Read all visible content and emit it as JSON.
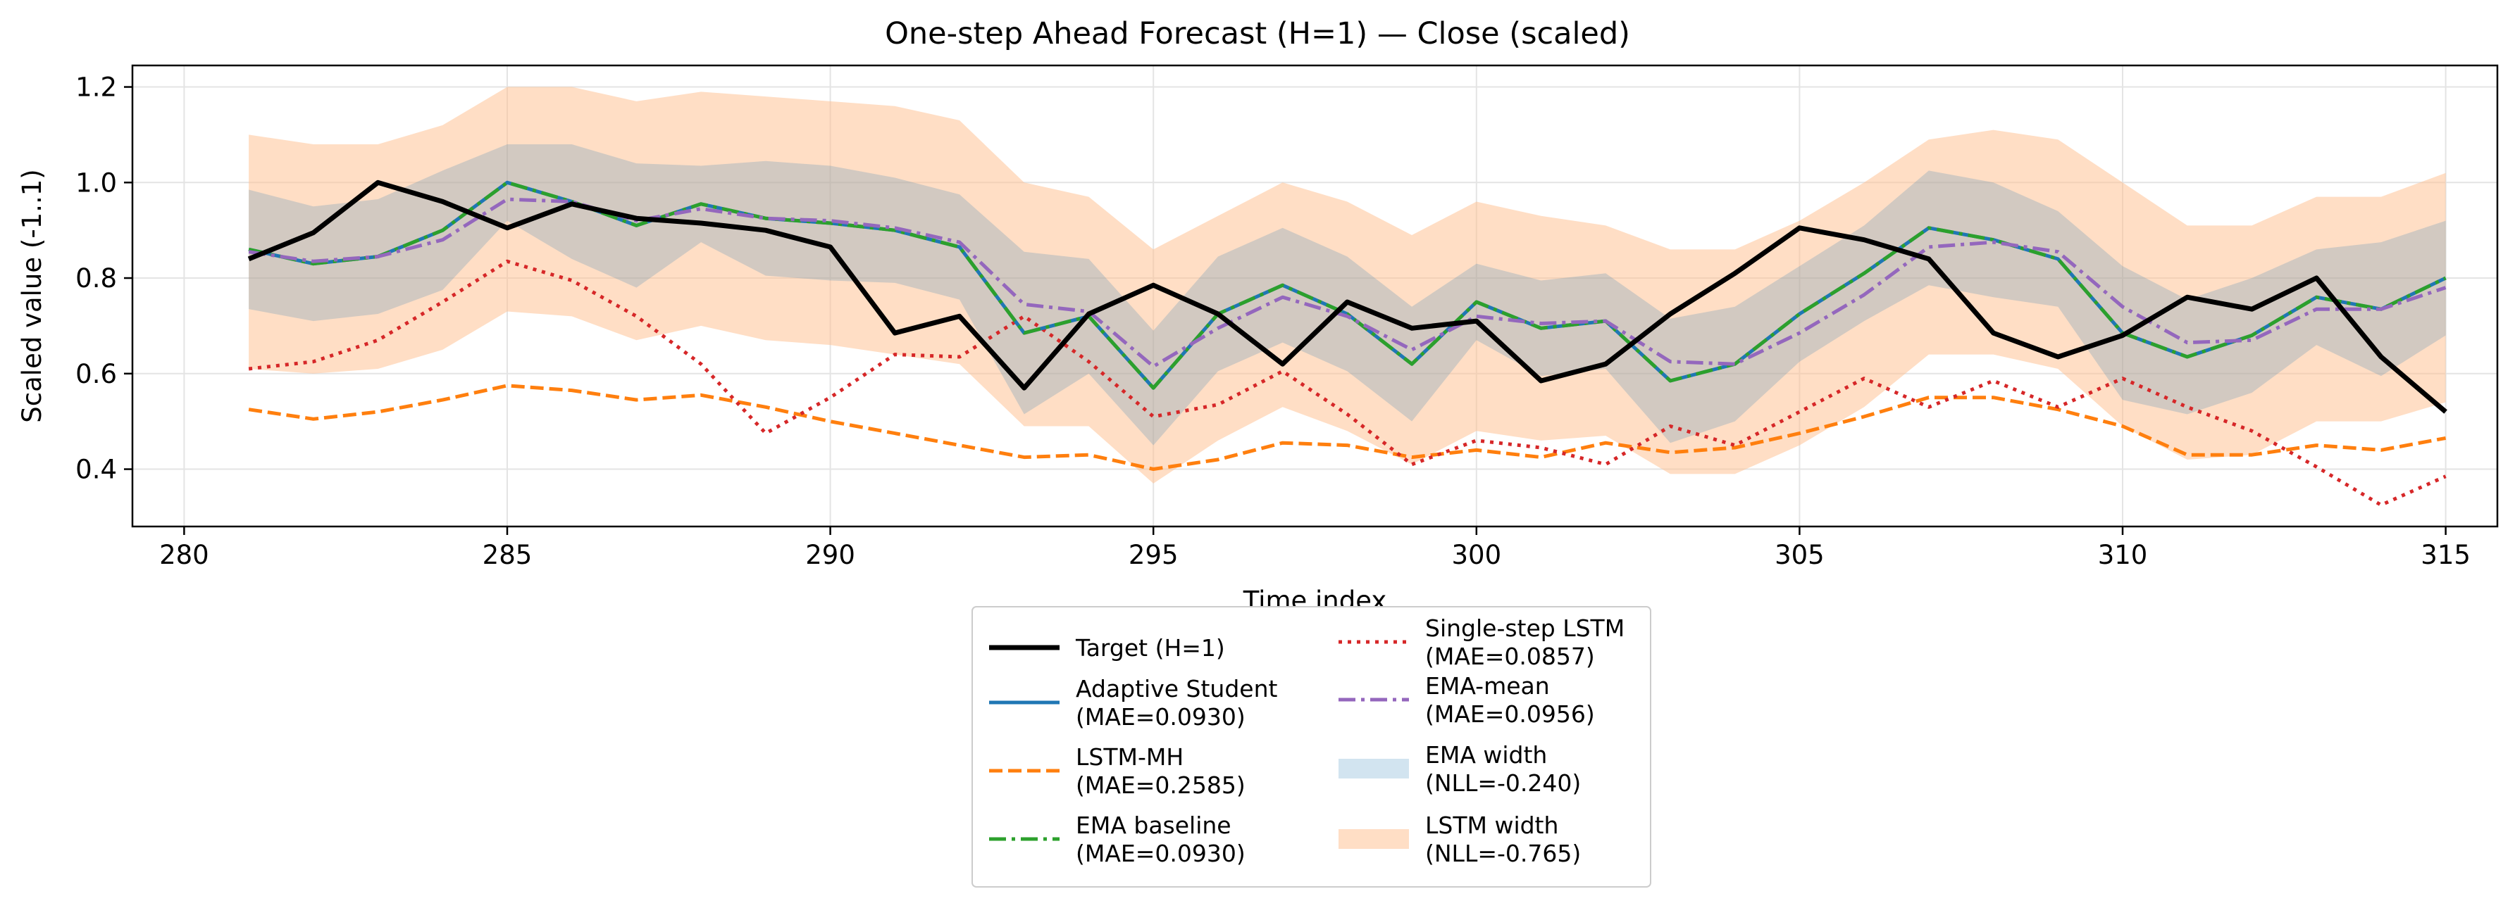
{
  "chart_data": {
    "type": "line",
    "title": "One-step Ahead Forecast (H=1) — Close (scaled)",
    "xlabel": "Time index",
    "ylabel": "Scaled value (-1..1)",
    "xlim": [
      279.2,
      315.8
    ],
    "ylim": [
      0.28,
      1.245
    ],
    "xticks": [
      "280",
      "285",
      "290",
      "295",
      "300",
      "305",
      "310",
      "315"
    ],
    "yticks": [
      "0.4",
      "0.6",
      "0.8",
      "1.0",
      "1.2"
    ],
    "grid": true,
    "legend_position": "below",
    "x": [
      281,
      282,
      283,
      284,
      285,
      286,
      287,
      288,
      289,
      290,
      291,
      292,
      293,
      294,
      295,
      296,
      297,
      298,
      299,
      300,
      301,
      302,
      303,
      304,
      305,
      306,
      307,
      308,
      309,
      310,
      311,
      312,
      313,
      314,
      315
    ],
    "series": [
      {
        "name": "Target (H=1)",
        "color": "#000000",
        "dash": "solid",
        "width": 7,
        "values": [
          0.84,
          0.895,
          1.0,
          0.96,
          0.905,
          0.955,
          0.925,
          0.915,
          0.9,
          0.865,
          0.685,
          0.72,
          0.57,
          0.725,
          0.785,
          0.725,
          0.62,
          0.75,
          0.695,
          0.71,
          0.585,
          0.62,
          0.725,
          0.81,
          0.905,
          0.88,
          0.84,
          0.685,
          0.635,
          0.68,
          0.76,
          0.735,
          0.8,
          0.635,
          0.52
        ]
      },
      {
        "name": "Adaptive Student\n(MAE=0.0930)",
        "color": "#1f77b4",
        "dash": "solid",
        "width": 5,
        "values": [
          0.86,
          0.83,
          0.845,
          0.9,
          1.0,
          0.96,
          0.91,
          0.955,
          0.925,
          0.915,
          0.9,
          0.865,
          0.685,
          0.72,
          0.57,
          0.725,
          0.785,
          0.725,
          0.62,
          0.75,
          0.695,
          0.71,
          0.585,
          0.62,
          0.725,
          0.81,
          0.905,
          0.88,
          0.84,
          0.685,
          0.635,
          0.68,
          0.76,
          0.735,
          0.8
        ]
      },
      {
        "name": "LSTM-MH\n(MAE=0.2585)",
        "color": "#ff7f0e",
        "dash": "dashed",
        "width": 5,
        "values": [
          0.525,
          0.505,
          0.52,
          0.545,
          0.575,
          0.565,
          0.545,
          0.555,
          0.53,
          0.5,
          0.475,
          0.45,
          0.425,
          0.43,
          0.4,
          0.42,
          0.455,
          0.45,
          0.425,
          0.44,
          0.425,
          0.455,
          0.435,
          0.445,
          0.475,
          0.51,
          0.55,
          0.55,
          0.525,
          0.49,
          0.43,
          0.43,
          0.45,
          0.44,
          0.465
        ]
      },
      {
        "name": "EMA baseline\n(MAE=0.0930)",
        "color": "#2ca02c",
        "dash": "dashdot",
        "width": 5,
        "values": [
          0.86,
          0.83,
          0.845,
          0.9,
          1.0,
          0.96,
          0.91,
          0.955,
          0.925,
          0.915,
          0.9,
          0.865,
          0.685,
          0.72,
          0.57,
          0.725,
          0.785,
          0.725,
          0.62,
          0.75,
          0.695,
          0.71,
          0.585,
          0.62,
          0.725,
          0.81,
          0.905,
          0.88,
          0.84,
          0.685,
          0.635,
          0.68,
          0.76,
          0.735,
          0.8
        ]
      },
      {
        "name": "Single-step LSTM\n(MAE=0.0857)",
        "color": "#d62728",
        "dash": "dotted",
        "width": 5,
        "values": [
          0.61,
          0.625,
          0.67,
          0.75,
          0.835,
          0.795,
          0.72,
          0.62,
          0.475,
          0.55,
          0.64,
          0.635,
          0.72,
          0.625,
          0.51,
          0.535,
          0.605,
          0.515,
          0.41,
          0.46,
          0.445,
          0.41,
          0.49,
          0.45,
          0.52,
          0.59,
          0.53,
          0.585,
          0.53,
          0.59,
          0.53,
          0.48,
          0.405,
          0.325,
          0.385
        ]
      },
      {
        "name": "EMA-mean\n(MAE=0.0956)",
        "color": "#9467bd",
        "dash": "dashdot",
        "width": 5,
        "values": [
          0.855,
          0.835,
          0.845,
          0.88,
          0.965,
          0.96,
          0.92,
          0.945,
          0.925,
          0.92,
          0.905,
          0.875,
          0.745,
          0.73,
          0.615,
          0.695,
          0.76,
          0.72,
          0.65,
          0.72,
          0.705,
          0.71,
          0.625,
          0.62,
          0.685,
          0.765,
          0.865,
          0.875,
          0.855,
          0.74,
          0.665,
          0.67,
          0.735,
          0.735,
          0.78
        ]
      }
    ],
    "bands": [
      {
        "name": "EMA width\n(NLL=-0.240)",
        "color": "#1f77b4",
        "opacity": 0.2,
        "center": [
          0.86,
          0.83,
          0.845,
          0.9,
          1.0,
          0.96,
          0.91,
          0.955,
          0.925,
          0.915,
          0.9,
          0.865,
          0.685,
          0.72,
          0.57,
          0.725,
          0.785,
          0.725,
          0.62,
          0.75,
          0.695,
          0.71,
          0.585,
          0.62,
          0.725,
          0.81,
          0.905,
          0.88,
          0.84,
          0.685,
          0.635,
          0.68,
          0.76,
          0.735,
          0.8
        ],
        "half_width": [
          0.125,
          0.12,
          0.12,
          0.125,
          0.08,
          0.12,
          0.13,
          0.08,
          0.12,
          0.12,
          0.11,
          0.11,
          0.17,
          0.12,
          0.12,
          0.12,
          0.12,
          0.12,
          0.12,
          0.08,
          0.1,
          0.1,
          0.13,
          0.12,
          0.1,
          0.1,
          0.12,
          0.12,
          0.1,
          0.14,
          0.12,
          0.12,
          0.1,
          0.14,
          0.12
        ]
      },
      {
        "name": "LSTM width\n(NLL=-0.765)",
        "color": "#ffbe8c",
        "opacity": 0.5,
        "upper": [
          1.1,
          1.08,
          1.08,
          1.12,
          1.2,
          1.2,
          1.17,
          1.19,
          1.18,
          1.17,
          1.16,
          1.13,
          1.0,
          0.97,
          0.86,
          0.93,
          1.0,
          0.96,
          0.89,
          0.96,
          0.93,
          0.91,
          0.86,
          0.86,
          0.92,
          1.0,
          1.09,
          1.11,
          1.09,
          1.0,
          0.91,
          0.91,
          0.97,
          0.97,
          1.02
        ],
        "lower": [
          0.61,
          0.6,
          0.61,
          0.65,
          0.73,
          0.72,
          0.67,
          0.7,
          0.67,
          0.66,
          0.64,
          0.62,
          0.49,
          0.49,
          0.37,
          0.46,
          0.53,
          0.48,
          0.41,
          0.48,
          0.46,
          0.47,
          0.39,
          0.39,
          0.45,
          0.53,
          0.64,
          0.64,
          0.61,
          0.49,
          0.42,
          0.43,
          0.5,
          0.5,
          0.54
        ]
      }
    ],
    "legend_order": [
      [
        "Target (H=1)",
        "Adaptive Student\n(MAE=0.0930)",
        "LSTM-MH\n(MAE=0.2585)",
        "EMA baseline\n(MAE=0.0930)"
      ],
      [
        "Single-step LSTM\n(MAE=0.0857)",
        "EMA-mean\n(MAE=0.0956)",
        "EMA width\n(NLL=-0.240)",
        "LSTM width\n(NLL=-0.765)"
      ]
    ]
  }
}
